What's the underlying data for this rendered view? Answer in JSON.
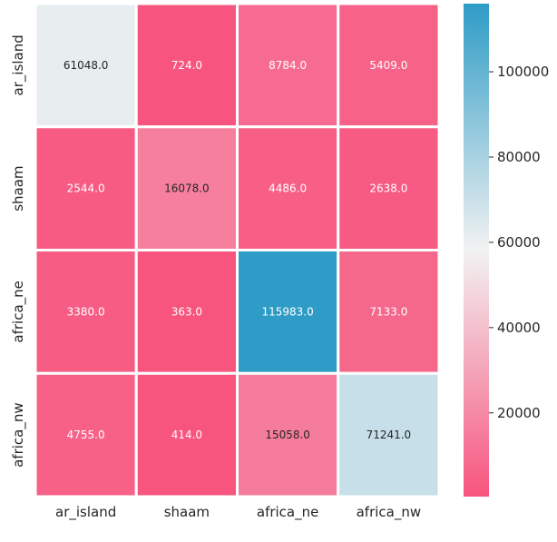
{
  "chart_data": {
    "type": "heatmap",
    "title": "",
    "xlabel": "",
    "ylabel": "",
    "x_categories": [
      "ar_island",
      "shaam",
      "africa_ne",
      "africa_nw"
    ],
    "y_categories": [
      "ar_island",
      "shaam",
      "africa_ne",
      "africa_nw"
    ],
    "values": [
      [
        61048.0,
        724.0,
        8784.0,
        5409.0
      ],
      [
        2544.0,
        16078.0,
        4486.0,
        2638.0
      ],
      [
        3380.0,
        363.0,
        115983.0,
        7133.0
      ],
      [
        4755.0,
        414.0,
        15058.0,
        71241.0
      ]
    ],
    "cell_labels": [
      [
        "61048.0",
        "724.0",
        "8784.0",
        "5409.0"
      ],
      [
        "2544.0",
        "16078.0",
        "4486.0",
        "2638.0"
      ],
      [
        "3380.0",
        "363.0",
        "115983.0",
        "7133.0"
      ],
      [
        "4755.0",
        "414.0",
        "15058.0",
        "71241.0"
      ]
    ],
    "color_range": [
      363.0,
      115983.0
    ],
    "colormap": [
      "#f7547e",
      "#f2f2f2",
      "#2e9cc6"
    ],
    "colorbar_ticks": [
      20000,
      40000,
      60000,
      80000,
      100000
    ],
    "colorbar_tick_labels": [
      "20000",
      "40000",
      "60000",
      "80000",
      "100000"
    ],
    "grid": false,
    "legend": "colorbar-right"
  }
}
